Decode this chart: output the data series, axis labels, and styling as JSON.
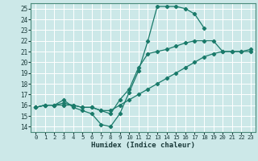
{
  "xlabel": "Humidex (Indice chaleur)",
  "xlim": [
    -0.5,
    23.5
  ],
  "ylim": [
    13.5,
    25.5
  ],
  "yticks": [
    14,
    15,
    16,
    17,
    18,
    19,
    20,
    21,
    22,
    23,
    24,
    25
  ],
  "xticks": [
    0,
    1,
    2,
    3,
    4,
    5,
    6,
    7,
    8,
    9,
    10,
    11,
    12,
    13,
    14,
    15,
    16,
    17,
    18,
    19,
    20,
    21,
    22,
    23
  ],
  "bg_color": "#cce8e8",
  "grid_color": "#ffffff",
  "line_color": "#1a7a6a",
  "lines": [
    {
      "x": [
        0,
        1,
        2,
        3,
        4,
        5,
        6,
        7,
        8,
        9,
        10,
        11,
        12,
        13,
        14,
        15,
        16,
        17,
        18,
        19,
        20,
        21,
        22,
        23
      ],
      "y": [
        15.8,
        16.0,
        16.0,
        16.5,
        15.8,
        15.5,
        15.2,
        14.2,
        14.0,
        15.2,
        17.2,
        19.2,
        22.0,
        25.2,
        25.2,
        25.2,
        25.0,
        24.5,
        23.2,
        null,
        null,
        null,
        null,
        null
      ]
    },
    {
      "x": [
        0,
        1,
        2,
        3,
        4,
        5,
        6,
        7,
        8,
        9,
        10,
        11,
        12,
        13,
        14,
        15,
        16,
        17,
        18,
        19,
        20,
        21,
        22,
        23
      ],
      "y": [
        15.8,
        16.0,
        16.0,
        16.2,
        16.0,
        15.8,
        15.8,
        15.5,
        15.2,
        16.5,
        17.5,
        19.5,
        20.8,
        21.0,
        21.2,
        21.5,
        21.8,
        22.0,
        22.0,
        22.0,
        21.0,
        21.0,
        21.0,
        21.2
      ]
    },
    {
      "x": [
        0,
        1,
        2,
        3,
        4,
        5,
        6,
        7,
        8,
        9,
        10,
        11,
        12,
        13,
        14,
        15,
        16,
        17,
        18,
        19,
        20,
        21,
        22,
        23
      ],
      "y": [
        15.8,
        16.0,
        16.0,
        16.0,
        16.0,
        15.8,
        15.8,
        15.5,
        15.5,
        16.0,
        16.5,
        17.0,
        17.5,
        18.0,
        18.5,
        19.0,
        19.5,
        20.0,
        20.5,
        20.8,
        21.0,
        21.0,
        21.0,
        21.0
      ]
    }
  ]
}
